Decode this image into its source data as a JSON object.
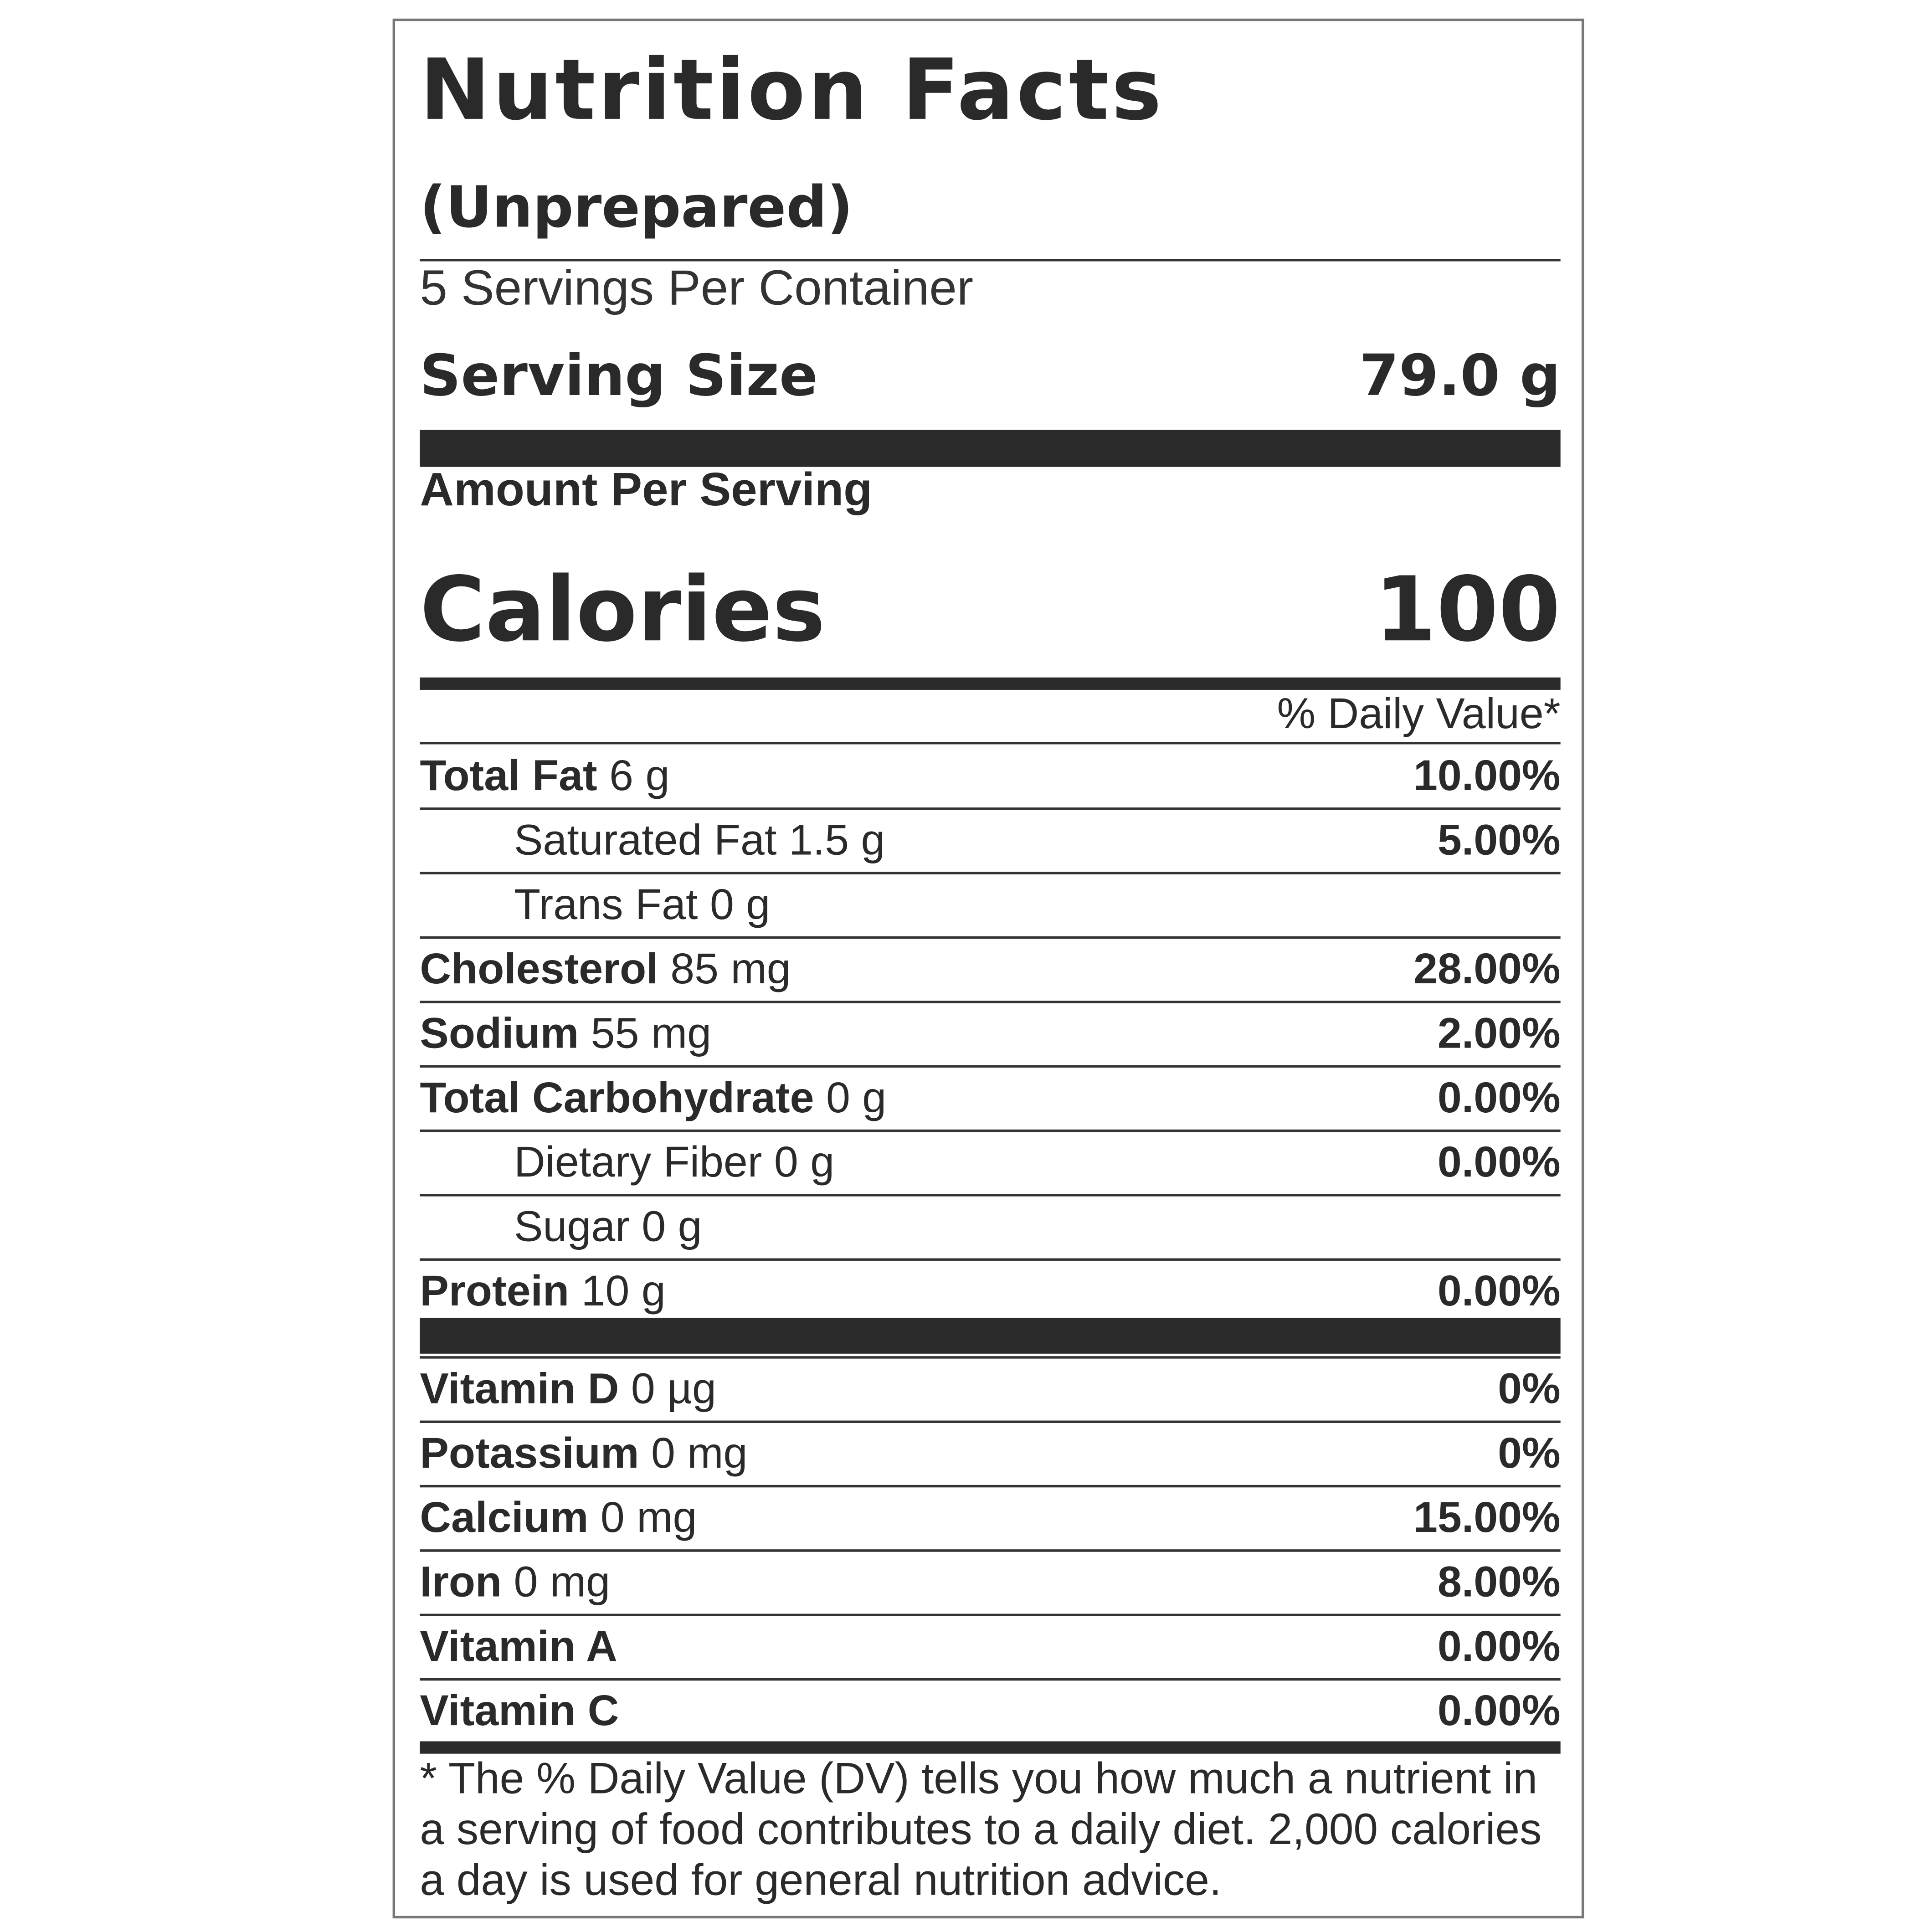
{
  "label": {
    "title": "Nutrition Facts",
    "subtitle": "(Unprepared)",
    "servings_per_container": "5 Servings Per Container",
    "serving_size_label": "Serving Size",
    "serving_size_value": "79.0 g",
    "amount_per_serving": "Amount Per Serving",
    "calories_label": "Calories",
    "calories_value": "100",
    "daily_value_header": "% Daily Value*",
    "nutrients": [
      {
        "name": "Total Fat",
        "amount": "6 g",
        "dv": "10.00%"
      },
      {
        "name": "Saturated Fat",
        "amount": "1.5 g",
        "dv": "5.00%"
      },
      {
        "name": "Trans Fat",
        "amount": "0 g",
        "dv": ""
      },
      {
        "name": "Cholesterol",
        "amount": "85 mg",
        "dv": "28.00%"
      },
      {
        "name": "Sodium",
        "amount": "55 mg",
        "dv": "2.00%"
      },
      {
        "name": "Total Carbohydrate",
        "amount": "0 g",
        "dv": "0.00%"
      },
      {
        "name": "Dietary Fiber",
        "amount": "0 g",
        "dv": "0.00%"
      },
      {
        "name": "Sugar",
        "amount": "0 g",
        "dv": ""
      },
      {
        "name": "Protein",
        "amount": "10 g",
        "dv": "0.00%"
      }
    ],
    "vitamins": [
      {
        "name": "Vitamin D",
        "amount": "0 µg",
        "dv": "0%"
      },
      {
        "name": "Potassium",
        "amount": "0 mg",
        "dv": "0%"
      },
      {
        "name": "Calcium",
        "amount": "0 mg",
        "dv": "15.00%"
      },
      {
        "name": "Iron",
        "amount": "0 mg",
        "dv": "8.00%"
      },
      {
        "name": "Vitamin A",
        "amount": "",
        "dv": "0.00%"
      },
      {
        "name": "Vitamin C",
        "amount": "",
        "dv": "0.00%"
      }
    ],
    "footnote": "* The % Daily Value (DV) tells you how much a nutrient in a serving of food contributes to a daily diet. 2,000 calories a day is used for general nutrition advice."
  }
}
